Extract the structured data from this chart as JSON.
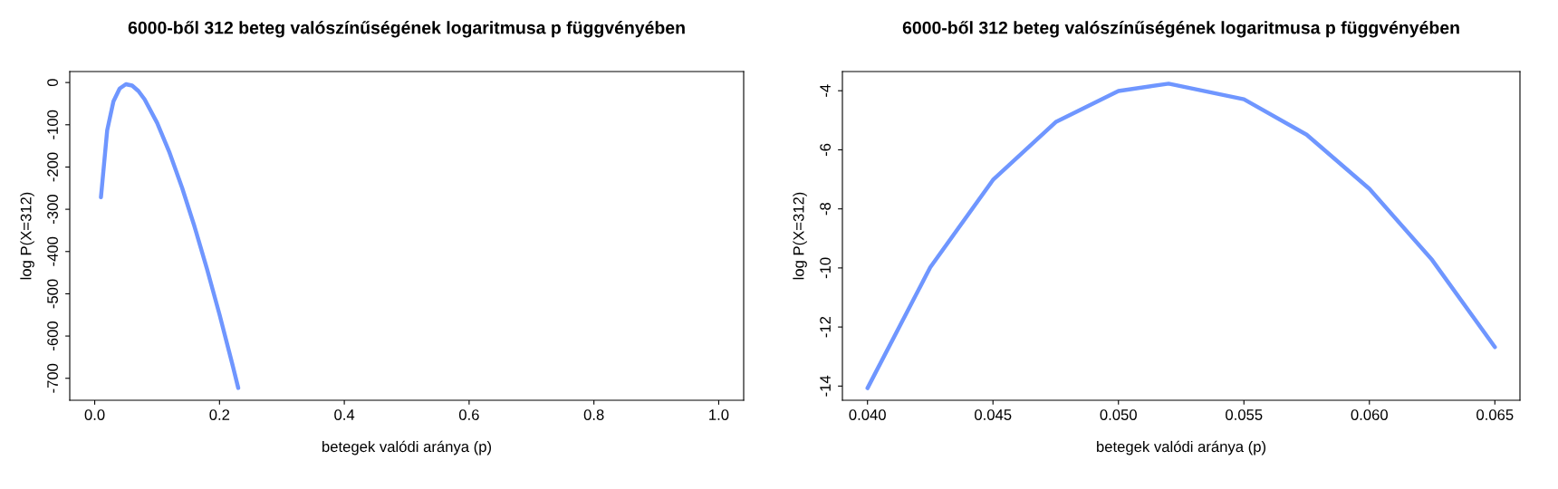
{
  "chart_data": [
    {
      "type": "line",
      "title": "6000-ből 312 beteg valószínűségének logaritmusa p függvényében",
      "xlabel": "betegek valódi aránya (p)",
      "ylabel": "log P(X=312)",
      "xlim": [
        -0.04,
        1.04
      ],
      "xticks": [
        {
          "value": 0,
          "label": "0.0"
        },
        0.2,
        0.4,
        0.6,
        0.8,
        {
          "value": 1,
          "label": "1.0"
        }
      ],
      "ylim": [
        -752,
        26
      ],
      "yticks": [
        -700,
        -600,
        -500,
        -400,
        -300,
        -200,
        -100,
        0
      ],
      "grid": false,
      "marker": "none",
      "line_style": "solid",
      "series": [
        {
          "color": "#6f96ff",
          "x": [
            0.01,
            0.02,
            0.03,
            0.04,
            0.05,
            0.06,
            0.07,
            0.08,
            0.1,
            0.12,
            0.14,
            0.16,
            0.18,
            0.2,
            0.22,
            0.23
          ],
          "values": [
            -271.6,
            -113.1,
            -44.9,
            -14.1,
            -4.0,
            -7.3,
            -20.1,
            -39.9,
            -95.3,
            -166.3,
            -248.9,
            -341.1,
            -441.4,
            -549.0,
            -663.3,
            -722.8
          ]
        }
      ]
    },
    {
      "type": "line",
      "title": "6000-ből 312 beteg valószínűségének logaritmusa p függvényében",
      "xlabel": "betegek valódi aránya (p)",
      "ylabel": "log P(X=312)",
      "xlim": [
        0.039,
        0.066
      ],
      "xticks": [
        {
          "value": 0.04,
          "label": "0.040"
        },
        {
          "value": 0.045,
          "label": "0.045"
        },
        {
          "value": 0.05,
          "label": "0.050"
        },
        {
          "value": 0.055,
          "label": "0.055"
        },
        {
          "value": 0.06,
          "label": "0.060"
        },
        {
          "value": 0.065,
          "label": "0.065"
        }
      ],
      "ylim": [
        -14.48,
        -3.35
      ],
      "yticks": [
        -14,
        -12,
        -10,
        -8,
        -6,
        -4
      ],
      "grid": false,
      "marker": "none",
      "line_style": "solid",
      "series": [
        {
          "color": "#6f96ff",
          "x": [
            0.04,
            0.0425,
            0.045,
            0.0475,
            0.05,
            0.052,
            0.055,
            0.0575,
            0.06,
            0.0625,
            0.065
          ],
          "values": [
            -14.07,
            -9.98,
            -7.02,
            -5.06,
            -4.01,
            -3.76,
            -4.29,
            -5.49,
            -7.32,
            -9.73,
            -12.68
          ]
        }
      ]
    }
  ]
}
